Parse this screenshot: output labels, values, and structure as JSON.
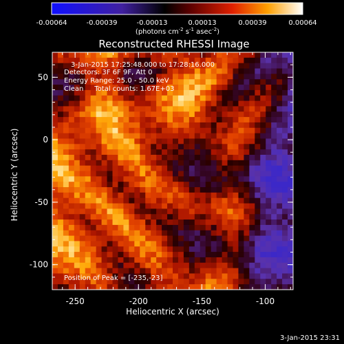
{
  "colorbar": {
    "ticks": [
      "-0.00064",
      "-0.00039",
      "-0.00013",
      "0.00013",
      "0.00039",
      "0.00064"
    ],
    "units_prefix": "(photons cm",
    "units_exp1": "-2",
    "units_mid1": " s",
    "units_exp2": "-1",
    "units_mid2": " asec",
    "units_exp3": "-2",
    "units_suffix": ")"
  },
  "plot": {
    "title": "Reconstructed RHESSI Image",
    "annotations": [
      "3-Jan-2015 17:25:48.000 to 17:28:16.000",
      "Detectors: 3F 6F 9F, Att 0",
      "Energy Range: 25.0 - 50.0 keV",
      "Clean     Total counts: 1.67E+03"
    ],
    "peak_label": "Position of Peak = [-235,-23]",
    "footer_timestamp": "3-Jan-2015 23:31"
  },
  "chart_data": {
    "type": "heatmap",
    "title": "Reconstructed RHESSI Image",
    "xlabel": "Heliocentric X (arcsec)",
    "ylabel": "Heliocentric Y (arcsec)",
    "xlim": [
      -268,
      -78
    ],
    "ylim": [
      -120,
      70
    ],
    "xticks": [
      -250,
      -200,
      -150,
      -100
    ],
    "yticks": [
      50,
      0,
      -50,
      -100
    ],
    "colorbar_range": [
      -0.00064,
      0.00064
    ],
    "colormap": "red-temperature (blue→black→red→yellow→white)",
    "peak_position": [
      -235,
      -23
    ]
  },
  "colors": {
    "background": "#000000",
    "foreground": "#ffffff"
  }
}
